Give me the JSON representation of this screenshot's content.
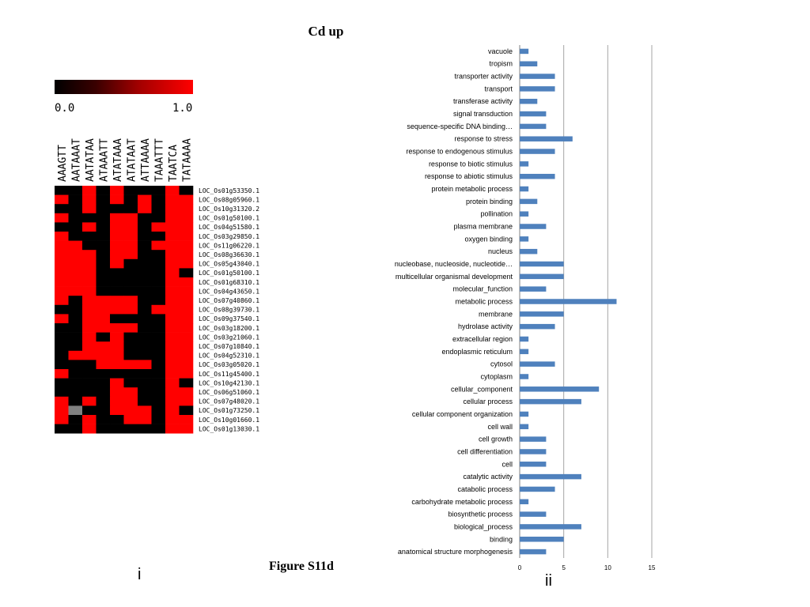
{
  "page_title": "Cd up",
  "figure_label": "Figure S11d",
  "panel_labels": {
    "left": "i",
    "right": "ii"
  },
  "colors": {
    "heat_low": "#000000",
    "heat_high": "#ff0000",
    "heat_missing": "#808080",
    "bar": "#4f81bd",
    "grid": "#a6a6a6"
  },
  "chart_data": [
    {
      "type": "heatmap",
      "colorbar": {
        "min_label": "0.0",
        "max_label": "1.0",
        "range": [
          0,
          1
        ]
      },
      "columns": [
        "AAAGTT",
        "AATAAAT",
        "AATATAA",
        "ATAAATT",
        "ATATAAA",
        "ATATAAT",
        "ATTAAAA",
        "TAAATTT",
        "TAATCA",
        "TATAAAA"
      ],
      "rows": [
        "LOC_Os01g53350.1",
        "LOC_Os08g05960.1",
        "LOC_Os10g31320.2",
        "LOC_Os01g50100.1",
        "LOC_Os04g51580.1",
        "LOC_Os03g29850.1",
        "LOC_Os11g06220.1",
        "LOC_Os08g36630.1",
        "LOC_Os05g43040.1",
        "LOC_Os01g50100.1",
        "LOC_Os01g68310.1",
        "LOC_Os04g43650.1",
        "LOC_Os07g40860.1",
        "LOC_Os08g39730.1",
        "LOC_Os09g37540.1",
        "LOC_Os03g18200.1",
        "LOC_Os03g21060.1",
        "LOC_Os07g10840.1",
        "LOC_Os04g52310.1",
        "LOC_Os03g05020.1",
        "LOC_Os11g45400.1",
        "LOC_Os10g42130.1",
        "LOC_Os06g51060.1",
        "LOC_Os07g48020.1",
        "LOC_Os01g73250.1",
        "LOC_Os10g01660.1",
        "LOC_Os01g13030.1"
      ],
      "values": [
        [
          0,
          0,
          1,
          0,
          1,
          0,
          0,
          0,
          1,
          0
        ],
        [
          1,
          0,
          1,
          0,
          1,
          0,
          1,
          0,
          1,
          1
        ],
        [
          0,
          0,
          1,
          0,
          0,
          0,
          1,
          0,
          1,
          1
        ],
        [
          1,
          0,
          0,
          0,
          1,
          1,
          0,
          0,
          1,
          1
        ],
        [
          0,
          0,
          1,
          0,
          1,
          1,
          0,
          1,
          1,
          1
        ],
        [
          1,
          0,
          0,
          0,
          1,
          1,
          0,
          0,
          1,
          1
        ],
        [
          1,
          1,
          0,
          0,
          1,
          1,
          0,
          1,
          1,
          1
        ],
        [
          1,
          1,
          1,
          0,
          1,
          1,
          0,
          0,
          1,
          1
        ],
        [
          1,
          1,
          1,
          0,
          1,
          0,
          0,
          0,
          1,
          1
        ],
        [
          1,
          1,
          1,
          0,
          0,
          0,
          0,
          0,
          1,
          0
        ],
        [
          1,
          1,
          1,
          0,
          0,
          0,
          0,
          0,
          1,
          1
        ],
        [
          1,
          1,
          1,
          0,
          0,
          0,
          0,
          0,
          1,
          1
        ],
        [
          1,
          0,
          1,
          1,
          1,
          1,
          0,
          0,
          1,
          1
        ],
        [
          0,
          0,
          1,
          1,
          1,
          1,
          0,
          1,
          1,
          1
        ],
        [
          1,
          0,
          1,
          1,
          0,
          0,
          0,
          0,
          1,
          1
        ],
        [
          0,
          0,
          1,
          1,
          1,
          1,
          0,
          0,
          1,
          1
        ],
        [
          0,
          0,
          1,
          0,
          1,
          0,
          0,
          0,
          1,
          1
        ],
        [
          0,
          0,
          1,
          1,
          1,
          0,
          0,
          0,
          1,
          1
        ],
        [
          0,
          1,
          1,
          1,
          1,
          0,
          0,
          0,
          1,
          1
        ],
        [
          0,
          0,
          0,
          1,
          1,
          1,
          1,
          0,
          1,
          1
        ],
        [
          1,
          0,
          0,
          0,
          0,
          0,
          0,
          0,
          1,
          1
        ],
        [
          0,
          0,
          0,
          0,
          1,
          0,
          0,
          0,
          1,
          0
        ],
        [
          0,
          0,
          0,
          0,
          1,
          1,
          0,
          0,
          1,
          1
        ],
        [
          1,
          0,
          1,
          0,
          1,
          1,
          0,
          0,
          1,
          1
        ],
        [
          1,
          -1,
          0,
          0,
          1,
          1,
          1,
          0,
          1,
          0
        ],
        [
          1,
          0,
          1,
          0,
          0,
          1,
          1,
          0,
          1,
          1
        ],
        [
          0,
          0,
          1,
          0,
          0,
          0,
          0,
          0,
          1,
          1
        ]
      ]
    },
    {
      "type": "bar",
      "orientation": "horizontal",
      "categories": [
        "vacuole",
        "tropism",
        "transporter activity",
        "transport",
        "transferase activity",
        "signal transduction",
        "sequence-specific DNA binding…",
        "response to stress",
        "response to endogenous stimulus",
        "response to biotic stimulus",
        "response to abiotic stimulus",
        "protein metabolic process",
        "protein binding",
        "pollination",
        "plasma membrane",
        "oxygen binding",
        "nucleus",
        "nucleobase, nucleoside, nucleotide…",
        "multicellular organismal development",
        "molecular_function",
        "metabolic process",
        "membrane",
        "hydrolase activity",
        "extracellular region",
        "endoplasmic reticulum",
        "cytosol",
        "cytoplasm",
        "cellular_component",
        "cellular process",
        "cellular component organization",
        "cell wall",
        "cell growth",
        "cell differentiation",
        "cell",
        "catalytic activity",
        "catabolic process",
        "carbohydrate metabolic process",
        "biosynthetic process",
        "biological_process",
        "binding",
        "anatomical structure morphogenesis"
      ],
      "values": [
        1,
        2,
        4,
        4,
        2,
        3,
        3,
        6,
        4,
        1,
        4,
        1,
        2,
        1,
        3,
        1,
        2,
        5,
        5,
        3,
        11,
        5,
        4,
        1,
        1,
        4,
        1,
        9,
        7,
        1,
        1,
        3,
        3,
        3,
        7,
        4,
        1,
        3,
        7,
        5,
        3
      ],
      "xlim": [
        0,
        15
      ],
      "xticks": [
        "0",
        "5",
        "10",
        "15"
      ],
      "grid": "vertical gridlines at 5, 10, 15"
    }
  ]
}
